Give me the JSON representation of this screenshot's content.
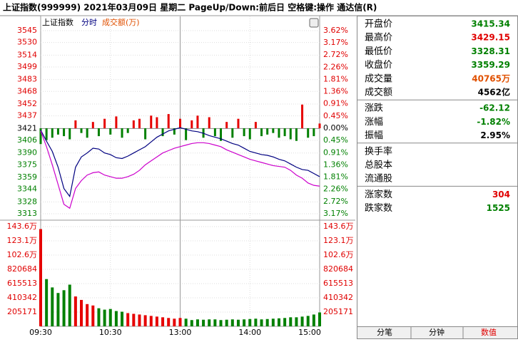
{
  "header": {
    "title": "上证指数(999999)  2021年03月09日 星期二  PageUp/Down:前后日  空格键:操作  通达信(R)"
  },
  "legend": {
    "name": "上证指数",
    "mode": "分时",
    "volume": "成交额(万)"
  },
  "chart_data": {
    "type": "line",
    "x": [
      0,
      5,
      10,
      15,
      20,
      25,
      30,
      35,
      40,
      45,
      50,
      55,
      60,
      65,
      70,
      75,
      80,
      85,
      90,
      95,
      100,
      105,
      110,
      115,
      120,
      125,
      130,
      135,
      140,
      145,
      150,
      155,
      160,
      165,
      170,
      175,
      180,
      185,
      190,
      195,
      200,
      205,
      210,
      215,
      220,
      225,
      230,
      235,
      240
    ],
    "xlim": [
      0,
      240
    ],
    "xticks": [
      {
        "value": 0,
        "label": "09:30"
      },
      {
        "value": 60,
        "label": "10:30"
      },
      {
        "value": 120,
        "label": "13:00"
      },
      {
        "value": 180,
        "label": "14:00"
      },
      {
        "value": 240,
        "label": "15:00"
      }
    ],
    "ylim": [
      3313,
      3545
    ],
    "yticks": [
      3545,
      3530,
      3514,
      3499,
      3483,
      3468,
      3452,
      3437,
      3421,
      3406,
      3390,
      3375,
      3359,
      3344,
      3328,
      3313
    ],
    "y2lim": [
      -3.17,
      3.62
    ],
    "y2ticks": [
      {
        "value": 3.62,
        "label": "3.62%"
      },
      {
        "value": 3.17,
        "label": "3.17%"
      },
      {
        "value": 2.72,
        "label": "2.72%"
      },
      {
        "value": 2.26,
        "label": "2.26%"
      },
      {
        "value": 1.81,
        "label": "1.81%"
      },
      {
        "value": 1.36,
        "label": "1.36%"
      },
      {
        "value": 0.91,
        "label": "0.91%"
      },
      {
        "value": 0.45,
        "label": "0.45%"
      },
      {
        "value": 0,
        "label": "0.00%"
      },
      {
        "value": -0.45,
        "label": "0.45%"
      },
      {
        "value": -0.91,
        "label": "0.91%"
      },
      {
        "value": -1.36,
        "label": "1.36%"
      },
      {
        "value": -1.81,
        "label": "1.81%"
      },
      {
        "value": -2.26,
        "label": "2.26%"
      },
      {
        "value": -2.72,
        "label": "2.72%"
      },
      {
        "value": -3.17,
        "label": "3.17%"
      }
    ],
    "series": [
      {
        "color": "#000080",
        "values": [
          3419,
          3405,
          3392,
          3372,
          3345,
          3335,
          3372,
          3385,
          3390,
          3396,
          3395,
          3390,
          3388,
          3384,
          3383,
          3386,
          3390,
          3394,
          3398,
          3404,
          3410,
          3414,
          3418,
          3420,
          3422,
          3420,
          3418,
          3417,
          3415,
          3412,
          3410,
          3408,
          3405,
          3402,
          3400,
          3396,
          3392,
          3390,
          3388,
          3387,
          3385,
          3382,
          3380,
          3376,
          3372,
          3369,
          3368,
          3364,
          3360
        ]
      },
      {
        "color": "#cc00cc",
        "values": [
          3418,
          3398,
          3375,
          3350,
          3325,
          3320,
          3345,
          3355,
          3362,
          3365,
          3366,
          3362,
          3360,
          3358,
          3358,
          3360,
          3363,
          3368,
          3375,
          3380,
          3385,
          3390,
          3393,
          3396,
          3398,
          3400,
          3402,
          3403,
          3403,
          3402,
          3400,
          3398,
          3394,
          3391,
          3388,
          3385,
          3382,
          3380,
          3378,
          3376,
          3374,
          3373,
          3372,
          3368,
          3362,
          3358,
          3352,
          3349,
          3348
        ]
      }
    ],
    "strength": [
      -20,
      -15,
      -12,
      -8,
      -10,
      -14,
      10,
      -6,
      -12,
      8,
      -10,
      12,
      -8,
      15,
      -12,
      -6,
      10,
      12,
      -14,
      16,
      14,
      -10,
      18,
      -8,
      12,
      -15,
      10,
      16,
      -12,
      14,
      -10,
      -16,
      8,
      -12,
      12,
      -10,
      -14,
      8,
      -10,
      -8,
      -6,
      -12,
      -10,
      -14,
      -16,
      30,
      -12,
      -10,
      6
    ],
    "up_color": "#e60000",
    "down_color": "#008000",
    "volume": {
      "values": [
        1400000,
        680000,
        560000,
        480000,
        520000,
        600000,
        430000,
        380000,
        320000,
        300000,
        260000,
        240000,
        250000,
        220000,
        210000,
        190000,
        180000,
        170000,
        160000,
        150000,
        140000,
        130000,
        120000,
        110000,
        120000,
        110000,
        90000,
        100000,
        95000,
        100000,
        100000,
        90000,
        95000,
        100000,
        95000,
        100000,
        105000,
        110000,
        100000,
        105000,
        110000,
        115000,
        120000,
        130000,
        130000,
        140000,
        150000,
        170000,
        200000
      ],
      "ylim": [
        0,
        1436000
      ],
      "yticks": [
        {
          "value": 1436000,
          "label": "143.6万"
        },
        {
          "value": 1231000,
          "label": "123.1万"
        },
        {
          "value": 1026000,
          "label": "102.6万"
        },
        820684,
        615513,
        410342,
        205171
      ]
    }
  },
  "panel": {
    "rows": [
      [
        "开盘价",
        "3415.34"
      ],
      [
        "最高价",
        "3429.15"
      ],
      [
        "最低价",
        "3328.31"
      ],
      [
        "收盘价",
        "3359.29"
      ],
      [
        "成交量",
        "40765万"
      ],
      [
        "成交额",
        "4562亿"
      ],
      [
        "涨跌",
        "-62.12"
      ],
      [
        "涨幅",
        "-1.82%"
      ],
      [
        "振幅",
        "2.95%"
      ],
      [
        "换手率"
      ],
      [
        "总股本"
      ],
      [
        "流通股"
      ],
      [
        "涨家数",
        "304"
      ],
      [
        "跌家数",
        "1525"
      ]
    ],
    "tabs": [
      "分笔",
      "分钟",
      "数值"
    ]
  }
}
